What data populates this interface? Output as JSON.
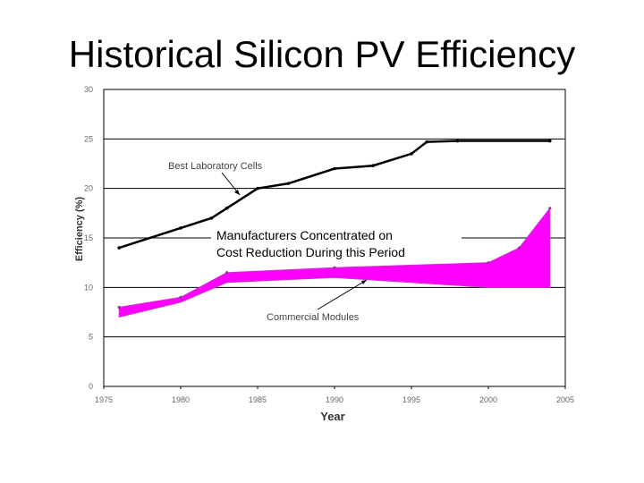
{
  "slide": {
    "title": "Historical Silicon PV Efficiency"
  },
  "chart_data": {
    "type": "line",
    "xlabel": "Year",
    "ylabel": "Efficiency (%)",
    "xlim": [
      1975,
      2005
    ],
    "ylim": [
      0,
      30
    ],
    "xticks": [
      "1975",
      "1980",
      "1985",
      "1990",
      "1995",
      "2000",
      "2005"
    ],
    "yticks": [
      "0",
      "5",
      "10",
      "15",
      "20",
      "25",
      "30"
    ],
    "grid": "horizontal",
    "colors": {
      "lab": "#000000",
      "commercial_fill": "#ff00ff",
      "commercial_edge": "#cc33cc",
      "background": "#ffffff"
    },
    "series": [
      {
        "name": "Best Laboratory Cells",
        "x": [
          1976,
          1980,
          1982,
          1983,
          1985,
          1987,
          1990,
          1992.5,
          1995,
          1996,
          1998,
          2004
        ],
        "y": [
          14.0,
          16.0,
          17.0,
          18.0,
          20.0,
          20.5,
          22.0,
          22.3,
          23.5,
          24.7,
          24.8,
          24.8
        ]
      },
      {
        "name": "Commercial Modules",
        "x": [
          1976,
          1980,
          1983,
          1990,
          2000,
          2002,
          2004
        ],
        "upper": [
          8.0,
          9.0,
          11.5,
          12.0,
          12.5,
          14.0,
          18.0
        ],
        "lower": [
          7.0,
          8.5,
          10.5,
          11.0,
          10.0,
          10.0,
          10.0
        ]
      }
    ],
    "annotations": [
      {
        "text": "Best Laboratory Cells"
      },
      {
        "text": "Commercial Modules"
      }
    ],
    "banner": {
      "line1": "Manufacturers Concentrated on",
      "line2": "Cost Reduction During this Period"
    }
  }
}
